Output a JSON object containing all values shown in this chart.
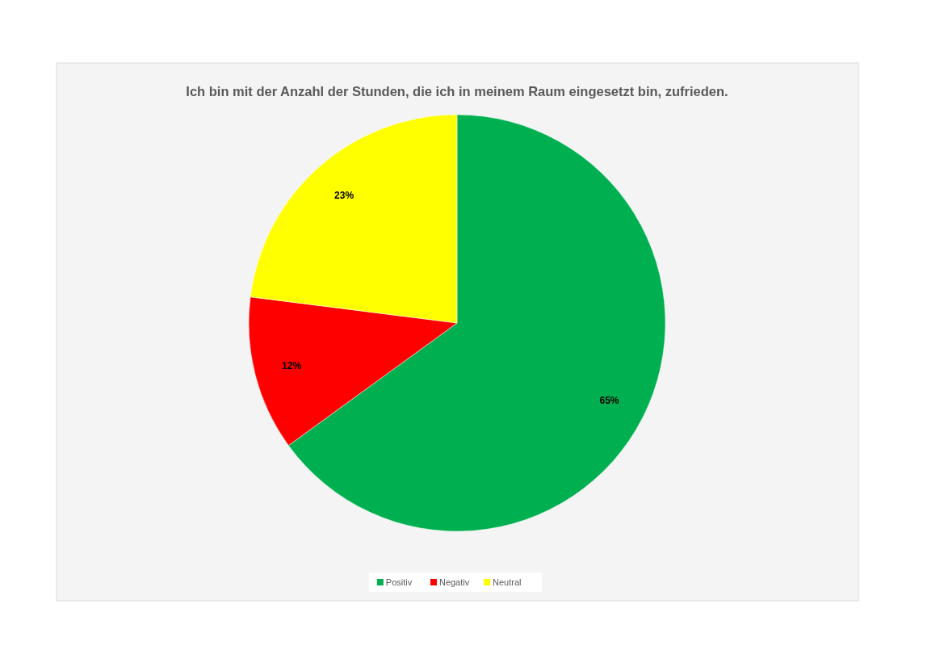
{
  "chart_data": {
    "type": "pie",
    "title": "Ich bin mit der Anzahl der Stunden, die ich in meinem Raum eingesetzt bin, zufrieden.",
    "categories": [
      "Positiv",
      "Negativ",
      "Neutral"
    ],
    "values": [
      65,
      12,
      23
    ],
    "colors": [
      "#00b050",
      "#ff0000",
      "#ffff00"
    ],
    "value_labels": [
      "65%",
      "12%",
      "23%"
    ],
    "legend": "bottom"
  }
}
